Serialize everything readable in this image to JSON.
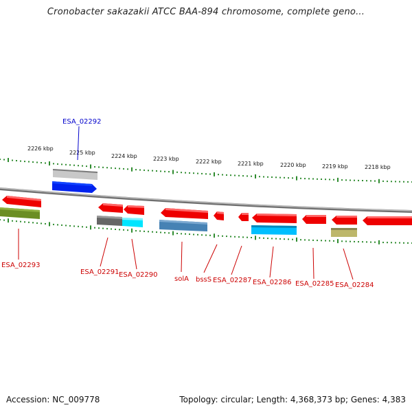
{
  "title": "Cronobacter sakazakii ATCC BAA-894 chromosome, complete geno...",
  "footer": {
    "accession": "Accession: NC_009778",
    "summary": "Topology: circular; Length: 4,368,373 bp; Genes: 4,383"
  },
  "axis_labels": [
    "2226 kbp",
    "2225 kbp",
    "2224 kbp",
    "2223 kbp",
    "2222 kbp",
    "2221 kbp",
    "2220 kbp",
    "2219 kbp",
    "2218 kbp"
  ],
  "colors": {
    "tick": "#2e8b2e",
    "backbone": "#8a8a8a",
    "label_red": "#cc0000",
    "label_blue": "#0000cc"
  },
  "genes": [
    {
      "label": "ESA_02292",
      "color": "#0000cc"
    },
    {
      "label": "ESA_02293",
      "color": "#cc0000"
    },
    {
      "label": "ESA_02291",
      "color": "#cc0000"
    },
    {
      "label": "ESA_02290",
      "color": "#cc0000"
    },
    {
      "label": "solA",
      "color": "#cc0000"
    },
    {
      "label": "bssS",
      "color": "#cc0000"
    },
    {
      "label": "ESA_02287",
      "color": "#cc0000"
    },
    {
      "label": "ESA_02286",
      "color": "#cc0000"
    },
    {
      "label": "ESA_02285",
      "color": "#cc0000"
    },
    {
      "label": "ESA_02284",
      "color": "#cc0000"
    }
  ]
}
